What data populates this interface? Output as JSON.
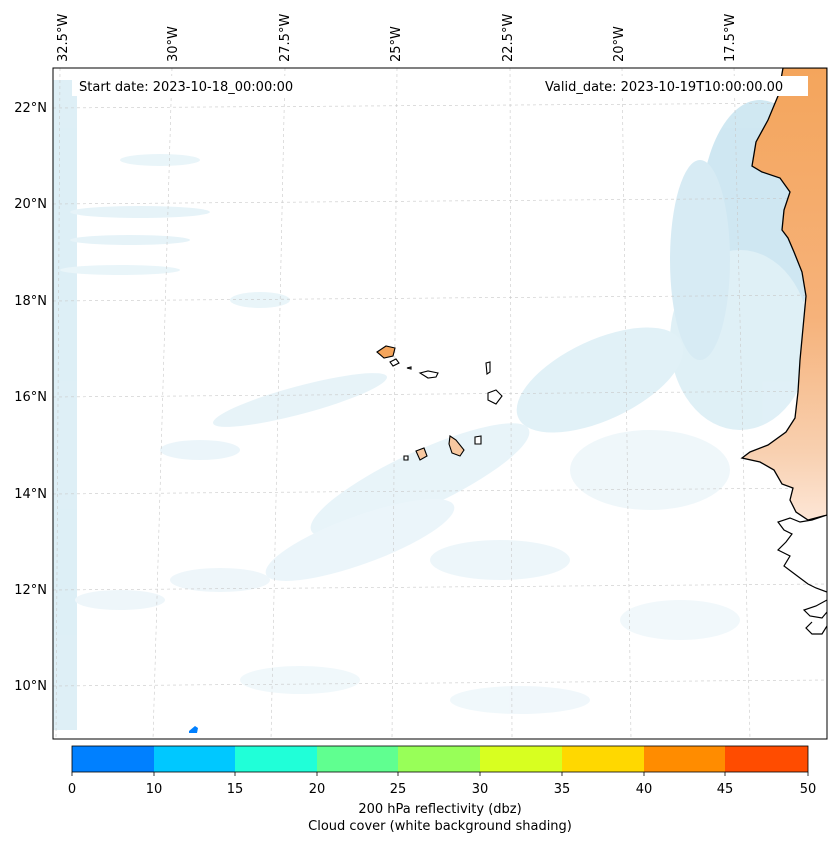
{
  "header": {
    "start_date": "Start date: 2023-10-18_00:00:00",
    "valid_date": "Valid_date: 2023-10-19T10:00:00.00"
  },
  "axes": {
    "lon_labels": [
      "32.5°W",
      "30°W",
      "27.5°W",
      "25°W",
      "22.5°W",
      "20°W",
      "17.5°W"
    ],
    "lat_labels": [
      "22°N",
      "20°N",
      "18°N",
      "16°N",
      "14°N",
      "12°N",
      "10°N"
    ]
  },
  "colorbar": {
    "ticks": [
      "0",
      "10",
      "15",
      "20",
      "25",
      "30",
      "35",
      "40",
      "45",
      "50"
    ],
    "colors": [
      "#0080ff",
      "#00c8ff",
      "#20ffd8",
      "#60ff90",
      "#98ff58",
      "#d8ff20",
      "#ffd800",
      "#ff8c00",
      "#ff4c00"
    ],
    "label_line1": "200 hPa reflectivity (dbz)",
    "label_line2": "Cloud cover (white background shading)"
  },
  "colors": {
    "land_mainland": "#f4a55c",
    "land_islands": "#f8c8a0",
    "cloud": "#a8d4e8",
    "grid": "#bbbbbb"
  }
}
